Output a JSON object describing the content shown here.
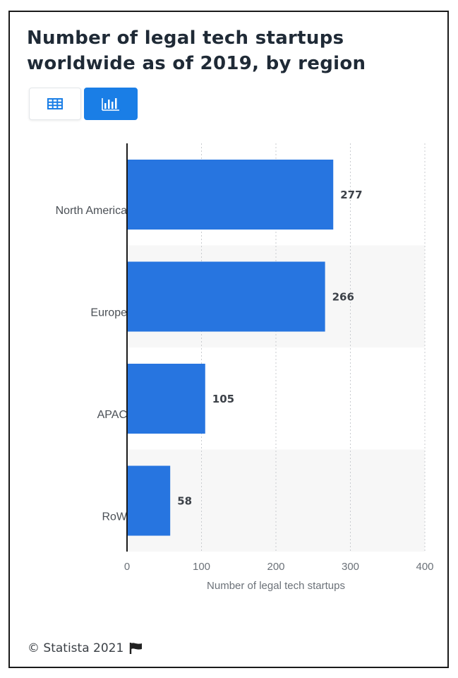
{
  "title": "Number of legal tech startups worldwide as of 2019, by region",
  "view_toggle": {
    "table_icon": "table-grid-icon",
    "chart_icon": "bar-chart-icon",
    "active": "chart",
    "accent": "#1a7ee6"
  },
  "chart_data": {
    "type": "bar",
    "orientation": "horizontal",
    "categories": [
      "North America",
      "Europe",
      "APAC",
      "RoW"
    ],
    "values": [
      277,
      266,
      105,
      58
    ],
    "value_labels": [
      "277",
      "266",
      "105",
      "58"
    ],
    "xlabel": "Number of legal tech startups",
    "xlim": [
      0,
      400
    ],
    "xticks": [
      "0",
      "100",
      "200",
      "300",
      "400"
    ],
    "grid": true,
    "bar_color": "#2775e0",
    "alt_band_color": "#f7f7f7"
  },
  "footer": {
    "copyright": "© Statista 2021",
    "flag_icon": "flag-icon"
  }
}
